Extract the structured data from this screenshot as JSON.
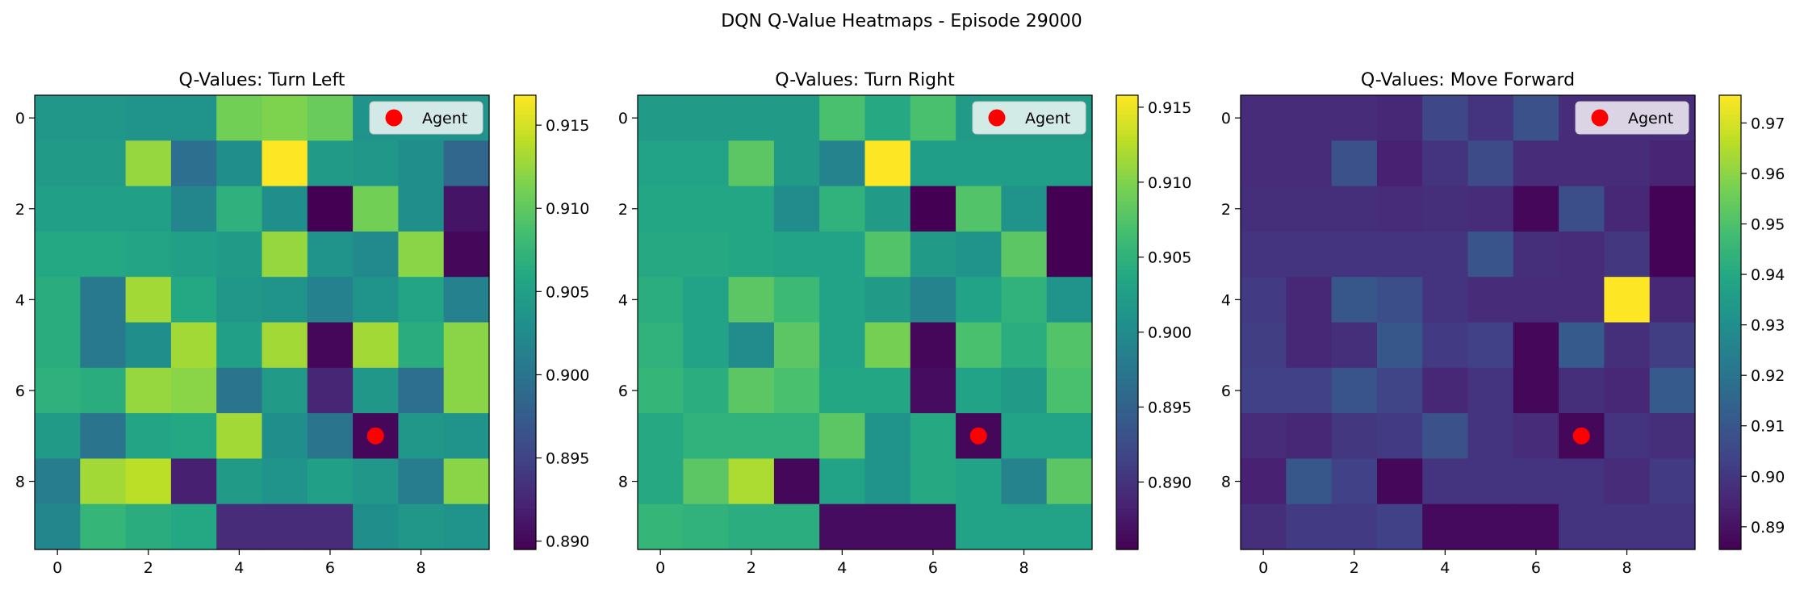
{
  "figure": {
    "suptitle": "DQN Q-Value Heatmaps - Episode 29000",
    "colormap": "viridis"
  },
  "chart_data": [
    {
      "type": "heatmap",
      "title": "Q-Values: Turn Left",
      "xlabel": "",
      "ylabel": "",
      "x_ticks": [
        "0",
        "2",
        "4",
        "6",
        "8"
      ],
      "y_ticks": [
        "0",
        "2",
        "4",
        "6",
        "8"
      ],
      "colorbar_ticks": [
        "0.890",
        "0.895",
        "0.900",
        "0.905",
        "0.910",
        "0.915"
      ],
      "vmin": 0.8895,
      "vmax": 0.9168,
      "legend": {
        "label": "Agent",
        "placement": "upper-right"
      },
      "agent": {
        "x": 7,
        "y": 7,
        "color": "#ff0000"
      },
      "values": [
        [
          0.904,
          0.904,
          0.9035,
          0.9035,
          0.911,
          0.9115,
          0.9105,
          0.9035,
          0.9035,
          0.9035
        ],
        [
          0.9045,
          0.9045,
          0.9125,
          0.8995,
          0.903,
          0.9168,
          0.9045,
          0.904,
          0.903,
          0.8985
        ],
        [
          0.905,
          0.905,
          0.905,
          0.902,
          0.907,
          0.903,
          0.8895,
          0.911,
          0.903,
          0.891
        ],
        [
          0.906,
          0.906,
          0.9055,
          0.905,
          0.9045,
          0.9125,
          0.9035,
          0.9025,
          0.912,
          0.89
        ],
        [
          0.9065,
          0.9005,
          0.913,
          0.906,
          0.904,
          0.9035,
          0.9015,
          0.9035,
          0.9055,
          0.9015
        ],
        [
          0.9065,
          0.9005,
          0.903,
          0.913,
          0.905,
          0.913,
          0.89,
          0.913,
          0.9065,
          0.912
        ],
        [
          0.907,
          0.9065,
          0.9125,
          0.912,
          0.9,
          0.9045,
          0.8925,
          0.904,
          0.8995,
          0.912
        ],
        [
          0.9045,
          0.9,
          0.9055,
          0.906,
          0.913,
          0.903,
          0.9,
          0.89,
          0.904,
          0.9035
        ],
        [
          0.901,
          0.913,
          0.914,
          0.892,
          0.9045,
          0.9035,
          0.905,
          0.904,
          0.901,
          0.912
        ],
        [
          0.902,
          0.9075,
          0.9065,
          0.906,
          0.893,
          0.893,
          0.893,
          0.903,
          0.904,
          0.9035
        ]
      ]
    },
    {
      "type": "heatmap",
      "title": "Q-Values: Turn Right",
      "xlabel": "",
      "ylabel": "",
      "x_ticks": [
        "0",
        "2",
        "4",
        "6",
        "8"
      ],
      "y_ticks": [
        "0",
        "2",
        "4",
        "6",
        "8"
      ],
      "colorbar_ticks": [
        "0.890",
        "0.895",
        "0.900",
        "0.905",
        "0.910",
        "0.915"
      ],
      "vmin": 0.8855,
      "vmax": 0.9158,
      "legend": {
        "label": "Agent",
        "placement": "upper-right"
      },
      "agent": {
        "x": 7,
        "y": 7,
        "color": "#ff0000"
      },
      "values": [
        [
          0.902,
          0.902,
          0.902,
          0.902,
          0.907,
          0.904,
          0.907,
          0.902,
          0.902,
          0.902
        ],
        [
          0.903,
          0.903,
          0.908,
          0.902,
          0.899,
          0.9158,
          0.9025,
          0.9025,
          0.9025,
          0.9025
        ],
        [
          0.9035,
          0.9035,
          0.9035,
          0.9,
          0.905,
          0.902,
          0.8855,
          0.9075,
          0.901,
          0.8855
        ],
        [
          0.904,
          0.904,
          0.9035,
          0.903,
          0.903,
          0.9075,
          0.902,
          0.901,
          0.908,
          0.8855
        ],
        [
          0.9045,
          0.903,
          0.908,
          0.906,
          0.903,
          0.902,
          0.899,
          0.903,
          0.905,
          0.901
        ],
        [
          0.905,
          0.903,
          0.9,
          0.908,
          0.903,
          0.9095,
          0.886,
          0.907,
          0.9045,
          0.9075
        ],
        [
          0.9055,
          0.9045,
          0.908,
          0.907,
          0.9035,
          0.9035,
          0.8865,
          0.903,
          0.902,
          0.907
        ],
        [
          0.904,
          0.905,
          0.905,
          0.905,
          0.908,
          0.901,
          0.904,
          0.886,
          0.903,
          0.903
        ],
        [
          0.904,
          0.908,
          0.912,
          0.886,
          0.903,
          0.901,
          0.904,
          0.903,
          0.899,
          0.908
        ],
        [
          0.9055,
          0.905,
          0.9045,
          0.9045,
          0.8865,
          0.8865,
          0.8865,
          0.903,
          0.903,
          0.903
        ]
      ]
    },
    {
      "type": "heatmap",
      "title": "Q-Values: Move Forward",
      "xlabel": "",
      "ylabel": "",
      "x_ticks": [
        "0",
        "2",
        "4",
        "6",
        "8"
      ],
      "y_ticks": [
        "0",
        "2",
        "4",
        "6",
        "8"
      ],
      "colorbar_ticks": [
        "0.89",
        "0.90",
        "0.91",
        "0.92",
        "0.93",
        "0.94",
        "0.95",
        "0.96",
        "0.97"
      ],
      "vmin": 0.8855,
      "vmax": 0.9755,
      "legend": {
        "label": "Agent",
        "placement": "upper-right"
      },
      "agent": {
        "x": 7,
        "y": 7,
        "color": "#ff0000"
      },
      "values": [
        [
          0.897,
          0.897,
          0.897,
          0.896,
          0.905,
          0.899,
          0.908,
          0.897,
          0.897,
          0.897
        ],
        [
          0.897,
          0.897,
          0.908,
          0.894,
          0.899,
          0.906,
          0.897,
          0.897,
          0.897,
          0.895
        ],
        [
          0.898,
          0.898,
          0.898,
          0.897,
          0.898,
          0.897,
          0.887,
          0.907,
          0.896,
          0.886
        ],
        [
          0.899,
          0.899,
          0.899,
          0.899,
          0.899,
          0.909,
          0.898,
          0.897,
          0.9,
          0.886
        ],
        [
          0.901,
          0.896,
          0.91,
          0.907,
          0.899,
          0.897,
          0.897,
          0.897,
          0.9755,
          0.896
        ],
        [
          0.902,
          0.896,
          0.898,
          0.91,
          0.901,
          0.903,
          0.887,
          0.911,
          0.898,
          0.902
        ],
        [
          0.903,
          0.903,
          0.909,
          0.904,
          0.896,
          0.899,
          0.887,
          0.898,
          0.896,
          0.911
        ],
        [
          0.897,
          0.896,
          0.9,
          0.901,
          0.908,
          0.899,
          0.897,
          0.887,
          0.899,
          0.898
        ],
        [
          0.894,
          0.91,
          0.903,
          0.887,
          0.899,
          0.899,
          0.899,
          0.899,
          0.897,
          0.901
        ],
        [
          0.898,
          0.901,
          0.901,
          0.903,
          0.888,
          0.888,
          0.888,
          0.899,
          0.899,
          0.899
        ]
      ]
    }
  ]
}
